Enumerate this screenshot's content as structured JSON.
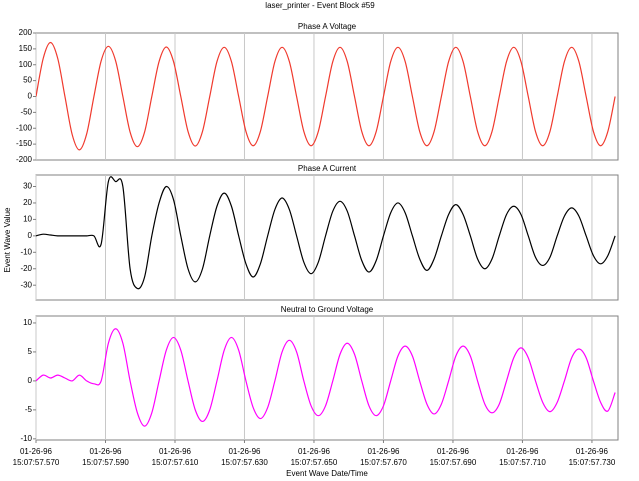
{
  "title": "laser_printer - Event Block #59",
  "ylabel": "Event Wave Value",
  "xlabel": "Event Wave Date/Time",
  "x": [
    570,
    572.08,
    574.17,
    576.25,
    578.33,
    580.42,
    582.5,
    584.58,
    586.67,
    588.75,
    590.83,
    592.92,
    595,
    597.08,
    599.17,
    601.25,
    603.33,
    605.42,
    607.5,
    609.58,
    611.67,
    613.75,
    615.83,
    617.92,
    620,
    622.08,
    624.17,
    626.25,
    628.33,
    630.42,
    632.5,
    634.58,
    636.67,
    638.75,
    640.83,
    642.92,
    645,
    647.08,
    649.17,
    651.25,
    653.33,
    655.42,
    657.5,
    659.58,
    661.67,
    663.75,
    665.83,
    667.92,
    670,
    672.08,
    674.17,
    676.25,
    678.33,
    680.42,
    682.5,
    684.58,
    686.67,
    688.75,
    690.83,
    692.92,
    695,
    697.08,
    699.17,
    701.25,
    703.33,
    705.42,
    707.5,
    709.58,
    711.67,
    713.75,
    715.83,
    717.92,
    720,
    722.08,
    724.17,
    726.25,
    728.33,
    730.42,
    732.5,
    734.58,
    736.67
  ],
  "xlim": [
    570,
    737.5
  ],
  "xticks": [
    {
      "value": 570,
      "label": "01-26-96 15:07:57.570"
    },
    {
      "value": 590,
      "label": "01-26-96 15:07:57.590"
    },
    {
      "value": 610,
      "label": "01-26-96 15:07:57.610"
    },
    {
      "value": 630,
      "label": "01-26-96 15:07:57.630"
    },
    {
      "value": 650,
      "label": "01-26-96 15:07:57.650"
    },
    {
      "value": 670,
      "label": "01-26-96 15:07:57.670"
    },
    {
      "value": 690,
      "label": "01-26-96 15:07:57.690"
    },
    {
      "value": 710,
      "label": "01-26-96 15:07:57.710"
    },
    {
      "value": 730,
      "label": "01-26-96 15:07:57.730"
    }
  ],
  "chart_data": [
    {
      "type": "line",
      "title": "Phase A Voltage",
      "color": "#f03a2e",
      "ylim": [
        -200,
        200
      ],
      "yticks": [
        200,
        150,
        100,
        50,
        0,
        -50,
        -100,
        -150,
        -200
      ],
      "values": [
        0,
        120,
        170,
        120,
        0,
        -120,
        -168,
        -118,
        0,
        112,
        158,
        112,
        0,
        -112,
        -158,
        -112,
        0,
        110,
        156,
        110,
        0,
        -110,
        -156,
        -110,
        0,
        110,
        155,
        110,
        0,
        -110,
        -155,
        -110,
        0,
        110,
        155,
        110,
        0,
        -110,
        -155,
        -110,
        0,
        110,
        155,
        110,
        0,
        -110,
        -155,
        -110,
        0,
        110,
        155,
        110,
        0,
        -110,
        -155,
        -110,
        0,
        110,
        155,
        110,
        0,
        -110,
        -155,
        -110,
        0,
        110,
        155,
        110,
        0,
        -110,
        -155,
        -110,
        0,
        110,
        155,
        110,
        0,
        -110,
        -155,
        -110,
        0
      ]
    },
    {
      "type": "line",
      "title": "Phase A Current",
      "color": "#000000",
      "ylim": [
        -39,
        37
      ],
      "yticks": [
        30,
        20,
        10,
        0,
        -10,
        -20,
        -30
      ],
      "values": [
        0,
        1,
        0.5,
        0,
        0,
        0,
        0,
        0,
        0,
        -5,
        33,
        33,
        30,
        -20,
        -32,
        -25,
        0,
        20,
        30,
        22,
        0,
        -20,
        -28,
        -20,
        0,
        18,
        26,
        18,
        0,
        -17,
        -25,
        -17,
        0,
        16,
        23,
        16,
        0,
        -16,
        -23,
        -16,
        0,
        15,
        21,
        15,
        0,
        -15,
        -22,
        -15,
        0,
        14,
        20,
        14,
        0,
        -14,
        -21,
        -14,
        0,
        13,
        19,
        13,
        0,
        -14,
        -20,
        -14,
        0,
        13,
        18,
        13,
        0,
        -13,
        -18,
        -13,
        0,
        12,
        17,
        12,
        0,
        -12,
        -17,
        -12,
        0
      ]
    },
    {
      "type": "line",
      "title": "Neutral to Ground Voltage",
      "color": "#ff00ff",
      "ylim": [
        -10.2,
        11.2
      ],
      "yticks": [
        10,
        5,
        0,
        -5,
        -10
      ],
      "values": [
        0,
        1,
        0.5,
        1,
        0.5,
        0,
        1,
        0,
        -0.5,
        0,
        6.5,
        9,
        6.5,
        0,
        -5.5,
        -7.8,
        -5.5,
        0,
        5.3,
        7.5,
        5.3,
        0,
        -5,
        -7,
        -5,
        0,
        5.3,
        7.5,
        5.3,
        0,
        -4.6,
        -6.5,
        -4.6,
        0,
        5,
        7,
        5,
        0,
        -4.3,
        -6,
        -4.3,
        0,
        4.6,
        6.5,
        4.6,
        0,
        -4.3,
        -6,
        -4.3,
        0,
        4.3,
        6,
        4.3,
        0,
        -4,
        -5.7,
        -4,
        0,
        4.3,
        6,
        4.3,
        0,
        -4,
        -5.5,
        -4,
        0,
        4,
        5.7,
        4,
        0,
        -3.7,
        -5.3,
        -3.7,
        0,
        4,
        5.5,
        4,
        0,
        -3.7,
        -5.2,
        -2
      ]
    }
  ]
}
